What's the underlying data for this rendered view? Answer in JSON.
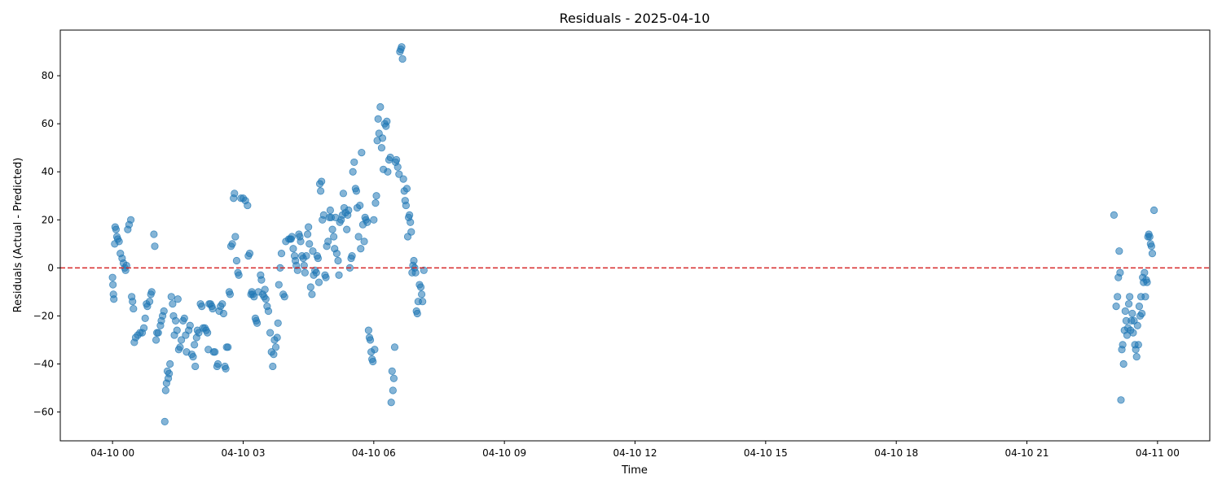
{
  "chart_data": {
    "type": "scatter",
    "title": "Residuals - 2025-04-10",
    "xlabel": "Time",
    "ylabel": "Residuals (Actual - Predicted)",
    "x_ticks": [
      "04-10 00",
      "04-10 03",
      "04-10 06",
      "04-10 09",
      "04-10 12",
      "04-10 15",
      "04-10 18",
      "04-10 21",
      "04-11 00"
    ],
    "x_tick_hours": [
      0,
      3,
      6,
      9,
      12,
      15,
      18,
      21,
      24
    ],
    "y_ticks": [
      -60,
      -40,
      -20,
      0,
      20,
      40,
      60,
      80
    ],
    "xlim": [
      -1.2,
      25.2
    ],
    "ylim": [
      -72,
      99
    ],
    "reference_line": {
      "y": 0,
      "color": "#d62728",
      "style": "dashed"
    },
    "marker_color": "#1f77b4",
    "marker_alpha": 0.55,
    "grid": false,
    "series": [
      {
        "points": [
          [
            0.0,
            -4
          ],
          [
            0.01,
            -7
          ],
          [
            0.02,
            -11
          ],
          [
            0.03,
            -13
          ],
          [
            0.05,
            10
          ],
          [
            0.06,
            17
          ],
          [
            0.08,
            16
          ],
          [
            0.1,
            13
          ],
          [
            0.12,
            12
          ],
          [
            0.15,
            11
          ],
          [
            0.18,
            6
          ],
          [
            0.22,
            4
          ],
          [
            0.25,
            2
          ],
          [
            0.28,
            0
          ],
          [
            0.3,
            -1
          ],
          [
            0.32,
            1
          ],
          [
            0.35,
            16
          ],
          [
            0.38,
            18
          ],
          [
            0.42,
            20
          ],
          [
            0.44,
            -12
          ],
          [
            0.46,
            -14
          ],
          [
            0.48,
            -17
          ],
          [
            0.5,
            -31
          ],
          [
            0.53,
            -29
          ],
          [
            0.58,
            -28
          ],
          [
            0.63,
            -27
          ],
          [
            0.68,
            -27
          ],
          [
            0.72,
            -25
          ],
          [
            0.75,
            -21
          ],
          [
            0.78,
            -15
          ],
          [
            0.8,
            -16
          ],
          [
            0.85,
            -14
          ],
          [
            0.88,
            -11
          ],
          [
            0.9,
            -10
          ],
          [
            0.95,
            14
          ],
          [
            0.97,
            9
          ],
          [
            1.0,
            -30
          ],
          [
            1.02,
            -27
          ],
          [
            1.05,
            -27
          ],
          [
            1.1,
            -24
          ],
          [
            1.12,
            -22
          ],
          [
            1.15,
            -20
          ],
          [
            1.18,
            -18
          ],
          [
            1.2,
            -64
          ],
          [
            1.22,
            -51
          ],
          [
            1.24,
            -48
          ],
          [
            1.26,
            -43
          ],
          [
            1.28,
            -46
          ],
          [
            1.3,
            -44
          ],
          [
            1.32,
            -40
          ],
          [
            1.35,
            -12
          ],
          [
            1.38,
            -15
          ],
          [
            1.4,
            -20
          ],
          [
            1.42,
            -28
          ],
          [
            1.45,
            -22
          ],
          [
            1.48,
            -26
          ],
          [
            1.5,
            -13
          ],
          [
            1.52,
            -34
          ],
          [
            1.55,
            -33
          ],
          [
            1.58,
            -30
          ],
          [
            1.62,
            -22
          ],
          [
            1.65,
            -21
          ],
          [
            1.68,
            -28
          ],
          [
            1.7,
            -35
          ],
          [
            1.75,
            -26
          ],
          [
            1.78,
            -24
          ],
          [
            1.82,
            -36
          ],
          [
            1.85,
            -37
          ],
          [
            1.88,
            -32
          ],
          [
            1.9,
            -41
          ],
          [
            1.93,
            -29
          ],
          [
            1.95,
            -26
          ],
          [
            1.98,
            -27
          ],
          [
            2.02,
            -15
          ],
          [
            2.05,
            -16
          ],
          [
            2.08,
            -25
          ],
          [
            2.12,
            -25
          ],
          [
            2.15,
            -26
          ],
          [
            2.18,
            -27
          ],
          [
            2.2,
            -34
          ],
          [
            2.22,
            -15
          ],
          [
            2.25,
            -15
          ],
          [
            2.28,
            -16
          ],
          [
            2.3,
            -17
          ],
          [
            2.32,
            -35
          ],
          [
            2.35,
            -35
          ],
          [
            2.4,
            -41
          ],
          [
            2.42,
            -40
          ],
          [
            2.45,
            -18
          ],
          [
            2.48,
            -16
          ],
          [
            2.52,
            -15
          ],
          [
            2.55,
            -19
          ],
          [
            2.58,
            -41
          ],
          [
            2.6,
            -42
          ],
          [
            2.62,
            -33
          ],
          [
            2.65,
            -33
          ],
          [
            2.68,
            -10
          ],
          [
            2.7,
            -11
          ],
          [
            2.72,
            9
          ],
          [
            2.75,
            10
          ],
          [
            2.78,
            29
          ],
          [
            2.8,
            31
          ],
          [
            2.82,
            13
          ],
          [
            2.85,
            3
          ],
          [
            2.88,
            -2
          ],
          [
            2.9,
            -3
          ],
          [
            2.95,
            29
          ],
          [
            3.0,
            29
          ],
          [
            3.05,
            28
          ],
          [
            3.1,
            26
          ],
          [
            3.12,
            5
          ],
          [
            3.15,
            6
          ],
          [
            3.18,
            -11
          ],
          [
            3.2,
            -10
          ],
          [
            3.22,
            -11
          ],
          [
            3.25,
            -12
          ],
          [
            3.28,
            -21
          ],
          [
            3.3,
            -22
          ],
          [
            3.32,
            -23
          ],
          [
            3.35,
            -10
          ],
          [
            3.4,
            -3
          ],
          [
            3.42,
            -5
          ],
          [
            3.45,
            -11
          ],
          [
            3.48,
            -12
          ],
          [
            3.5,
            -9
          ],
          [
            3.52,
            -13
          ],
          [
            3.55,
            -16
          ],
          [
            3.58,
            -18
          ],
          [
            3.62,
            -27
          ],
          [
            3.65,
            -35
          ],
          [
            3.68,
            -41
          ],
          [
            3.7,
            -36
          ],
          [
            3.72,
            -30
          ],
          [
            3.75,
            -33
          ],
          [
            3.78,
            -29
          ],
          [
            3.8,
            -23
          ],
          [
            3.82,
            -7
          ],
          [
            3.85,
            0
          ],
          [
            3.88,
            6
          ],
          [
            3.92,
            -11
          ],
          [
            3.95,
            -12
          ],
          [
            3.98,
            11
          ],
          [
            4.05,
            12
          ],
          [
            4.08,
            12
          ],
          [
            4.1,
            12
          ],
          [
            4.12,
            13
          ],
          [
            4.15,
            8
          ],
          [
            4.18,
            5
          ],
          [
            4.2,
            3
          ],
          [
            4.22,
            1
          ],
          [
            4.25,
            -1
          ],
          [
            4.28,
            14
          ],
          [
            4.3,
            13
          ],
          [
            4.32,
            11
          ],
          [
            4.35,
            5
          ],
          [
            4.38,
            4
          ],
          [
            4.4,
            1
          ],
          [
            4.42,
            -2
          ],
          [
            4.45,
            5
          ],
          [
            4.48,
            14
          ],
          [
            4.5,
            17
          ],
          [
            4.52,
            10
          ],
          [
            4.55,
            -8
          ],
          [
            4.58,
            -11
          ],
          [
            4.6,
            7
          ],
          [
            4.62,
            -3
          ],
          [
            4.65,
            -1
          ],
          [
            4.68,
            -2
          ],
          [
            4.7,
            5
          ],
          [
            4.72,
            4
          ],
          [
            4.74,
            -6
          ],
          [
            4.76,
            35
          ],
          [
            4.78,
            32
          ],
          [
            4.8,
            36
          ],
          [
            4.82,
            20
          ],
          [
            4.85,
            22
          ],
          [
            4.88,
            -3
          ],
          [
            4.9,
            -4
          ],
          [
            4.92,
            9
          ],
          [
            4.95,
            11
          ],
          [
            4.98,
            21
          ],
          [
            5.0,
            24
          ],
          [
            5.02,
            21
          ],
          [
            5.05,
            16
          ],
          [
            5.08,
            13
          ],
          [
            5.1,
            8
          ],
          [
            5.12,
            21
          ],
          [
            5.15,
            6
          ],
          [
            5.18,
            3
          ],
          [
            5.2,
            -3
          ],
          [
            5.22,
            19
          ],
          [
            5.25,
            20
          ],
          [
            5.28,
            22
          ],
          [
            5.3,
            31
          ],
          [
            5.32,
            25
          ],
          [
            5.35,
            23
          ],
          [
            5.38,
            16
          ],
          [
            5.4,
            22
          ],
          [
            5.42,
            24
          ],
          [
            5.45,
            0
          ],
          [
            5.48,
            4
          ],
          [
            5.5,
            5
          ],
          [
            5.52,
            40
          ],
          [
            5.55,
            44
          ],
          [
            5.58,
            33
          ],
          [
            5.6,
            32
          ],
          [
            5.62,
            25
          ],
          [
            5.65,
            13
          ],
          [
            5.68,
            26
          ],
          [
            5.7,
            8
          ],
          [
            5.72,
            48
          ],
          [
            5.75,
            18
          ],
          [
            5.78,
            11
          ],
          [
            5.8,
            21
          ],
          [
            5.82,
            20
          ],
          [
            5.85,
            19
          ],
          [
            5.88,
            -26
          ],
          [
            5.9,
            -29
          ],
          [
            5.92,
            -30
          ],
          [
            5.94,
            -35
          ],
          [
            5.96,
            -38
          ],
          [
            5.98,
            -39
          ],
          [
            6.0,
            20
          ],
          [
            6.02,
            -34
          ],
          [
            6.04,
            27
          ],
          [
            6.06,
            30
          ],
          [
            6.08,
            53
          ],
          [
            6.1,
            62
          ],
          [
            6.12,
            56
          ],
          [
            6.15,
            67
          ],
          [
            6.18,
            50
          ],
          [
            6.2,
            54
          ],
          [
            6.22,
            41
          ],
          [
            6.25,
            60
          ],
          [
            6.28,
            59
          ],
          [
            6.3,
            61
          ],
          [
            6.32,
            40
          ],
          [
            6.35,
            45
          ],
          [
            6.38,
            46
          ],
          [
            6.4,
            -56
          ],
          [
            6.42,
            -43
          ],
          [
            6.44,
            -51
          ],
          [
            6.46,
            -46
          ],
          [
            6.48,
            -33
          ],
          [
            6.5,
            44
          ],
          [
            6.52,
            45
          ],
          [
            6.55,
            42
          ],
          [
            6.58,
            39
          ],
          [
            6.6,
            90
          ],
          [
            6.62,
            91
          ],
          [
            6.64,
            92
          ],
          [
            6.66,
            87
          ],
          [
            6.68,
            37
          ],
          [
            6.7,
            32
          ],
          [
            6.72,
            28
          ],
          [
            6.74,
            26
          ],
          [
            6.76,
            33
          ],
          [
            6.78,
            13
          ],
          [
            6.8,
            21
          ],
          [
            6.82,
            22
          ],
          [
            6.84,
            19
          ],
          [
            6.86,
            15
          ],
          [
            6.88,
            -2
          ],
          [
            6.9,
            1
          ],
          [
            6.92,
            3
          ],
          [
            6.94,
            0
          ],
          [
            6.96,
            -2
          ],
          [
            6.98,
            -18
          ],
          [
            7.0,
            -19
          ],
          [
            7.02,
            -14
          ],
          [
            7.05,
            -7
          ],
          [
            7.08,
            -8
          ],
          [
            7.1,
            -11
          ],
          [
            7.12,
            -14
          ],
          [
            7.15,
            -1
          ],
          [
            23.0,
            22
          ],
          [
            23.05,
            -16
          ],
          [
            23.08,
            -12
          ],
          [
            23.1,
            -4
          ],
          [
            23.12,
            7
          ],
          [
            23.14,
            -2
          ],
          [
            23.16,
            -55
          ],
          [
            23.18,
            -34
          ],
          [
            23.2,
            -32
          ],
          [
            23.22,
            -40
          ],
          [
            23.24,
            -26
          ],
          [
            23.26,
            -18
          ],
          [
            23.28,
            -22
          ],
          [
            23.3,
            -28
          ],
          [
            23.32,
            -25
          ],
          [
            23.34,
            -15
          ],
          [
            23.36,
            -12
          ],
          [
            23.38,
            -26
          ],
          [
            23.4,
            -22
          ],
          [
            23.42,
            -19
          ],
          [
            23.44,
            -27
          ],
          [
            23.46,
            -22
          ],
          [
            23.48,
            -32
          ],
          [
            23.5,
            -34
          ],
          [
            23.52,
            -37
          ],
          [
            23.54,
            -24
          ],
          [
            23.56,
            -32
          ],
          [
            23.58,
            -16
          ],
          [
            23.6,
            -20
          ],
          [
            23.62,
            -12
          ],
          [
            23.64,
            -19
          ],
          [
            23.66,
            -4
          ],
          [
            23.68,
            -6
          ],
          [
            23.7,
            -2
          ],
          [
            23.72,
            -12
          ],
          [
            23.74,
            -5
          ],
          [
            23.76,
            -6
          ],
          [
            23.78,
            13
          ],
          [
            23.8,
            14
          ],
          [
            23.82,
            13
          ],
          [
            23.84,
            10
          ],
          [
            23.86,
            9
          ],
          [
            23.88,
            6
          ],
          [
            23.92,
            24
          ]
        ]
      }
    ]
  }
}
